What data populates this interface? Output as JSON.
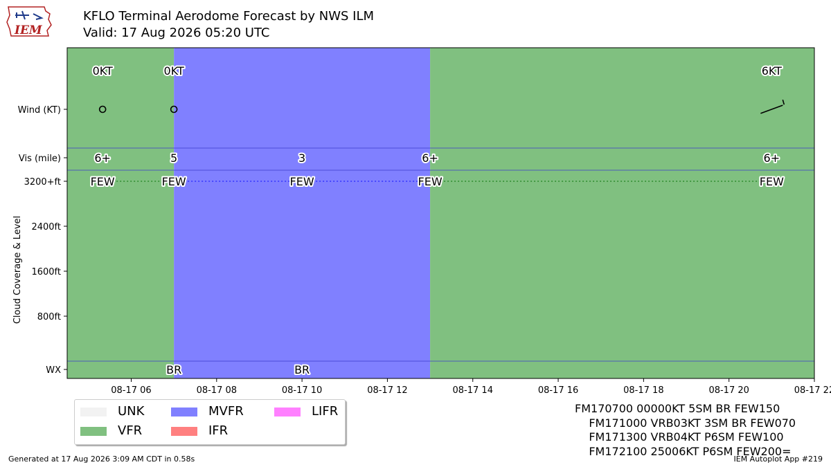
{
  "header": {
    "title": "KFLO Terminal Aerodome Forecast by NWS ILM",
    "valid": "Valid: 17 Aug 2026 05:20 UTC",
    "logo_text": "IEM"
  },
  "colors": {
    "UNK": "#f2f2f2",
    "VFR": "#80c080",
    "MVFR": "#8080ff",
    "IFR": "#ff8080",
    "LIFR": "#ff80ff"
  },
  "chart_data": {
    "type": "timeline",
    "x_range": [
      "08-17 04:30",
      "08-17 22:00"
    ],
    "x_ticks": [
      {
        "hour": 6,
        "label": "08-17 06"
      },
      {
        "hour": 8,
        "label": "08-17 08"
      },
      {
        "hour": 10,
        "label": "08-17 10"
      },
      {
        "hour": 12,
        "label": "08-17 12"
      },
      {
        "hour": 14,
        "label": "08-17 14"
      },
      {
        "hour": 16,
        "label": "08-17 16"
      },
      {
        "hour": 18,
        "label": "08-17 18"
      },
      {
        "hour": 20,
        "label": "08-17 20"
      },
      {
        "hour": 22,
        "label": "08-17 22"
      }
    ],
    "rows": {
      "wind": "Wind (KT)",
      "vis": "Vis (mile)",
      "clouds": [
        "3200+ft",
        "2400ft",
        "1600ft",
        "800ft"
      ],
      "wx": "WX"
    },
    "ylabel": "Cloud Coverage & Level",
    "categories_bands": [
      {
        "start": 4.5,
        "end": 7.0,
        "category": "VFR"
      },
      {
        "start": 7.0,
        "end": 13.0,
        "category": "MVFR"
      },
      {
        "start": 13.0,
        "end": 22.0,
        "category": "VFR"
      }
    ],
    "wind": [
      {
        "time": 5.33,
        "label": "0KT",
        "speed": 0,
        "dir": null
      },
      {
        "time": 7.0,
        "label": "0KT",
        "speed": 0,
        "dir": null
      },
      {
        "time": 21.0,
        "label": "6KT",
        "speed": 6,
        "dir": 250
      }
    ],
    "visibility": [
      {
        "time": 5.33,
        "label": "6+"
      },
      {
        "time": 7.0,
        "label": "5"
      },
      {
        "time": 10.0,
        "label": "3"
      },
      {
        "time": 13.0,
        "label": "6+"
      },
      {
        "time": 21.0,
        "label": "6+"
      }
    ],
    "clouds": [
      {
        "time": 5.33,
        "label": "FEW",
        "category": "VFR"
      },
      {
        "time": 7.0,
        "label": "FEW",
        "category": "MVFR"
      },
      {
        "time": 10.0,
        "label": "FEW",
        "category": "MVFR"
      },
      {
        "time": 13.0,
        "label": "FEW",
        "category": "VFR"
      },
      {
        "time": 21.0,
        "label": "FEW",
        "category": "VFR"
      }
    ],
    "wx": [
      {
        "time": 7.0,
        "label": "BR"
      },
      {
        "time": 10.0,
        "label": "BR"
      }
    ]
  },
  "legend": {
    "items": [
      {
        "key": "UNK",
        "label": "UNK"
      },
      {
        "key": "VFR",
        "label": "VFR"
      },
      {
        "key": "MVFR",
        "label": "MVFR"
      },
      {
        "key": "IFR",
        "label": "IFR"
      },
      {
        "key": "LIFR",
        "label": "LIFR"
      }
    ]
  },
  "raw_taf": [
    "FM170700 00000KT 5SM BR FEW150",
    "    FM171000 VRB03KT 3SM BR FEW070",
    "    FM171300 VRB04KT P6SM FEW100",
    "    FM172100 25006KT P6SM FEW200="
  ],
  "footer": {
    "generated": "Generated at 17 Aug 2026 3:09 AM CDT in 0.58s",
    "app": "IEM Autoplot App #219"
  }
}
